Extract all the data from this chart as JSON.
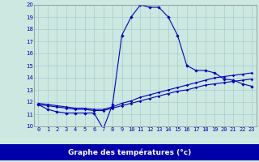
{
  "xlabel": "Graphe des températures (°c)",
  "bg_color": "#cce8e0",
  "line_color": "#0000bb",
  "label_bg_color": "#0000aa",
  "label_text_color": "#ffffff",
  "ylim": [
    10,
    20
  ],
  "xlim": [
    -0.5,
    23.5
  ],
  "yticks": [
    10,
    11,
    12,
    13,
    14,
    15,
    16,
    17,
    18,
    19,
    20
  ],
  "xticks": [
    0,
    1,
    2,
    3,
    4,
    5,
    6,
    7,
    8,
    9,
    10,
    11,
    12,
    13,
    14,
    15,
    16,
    17,
    18,
    19,
    20,
    21,
    22,
    23
  ],
  "temp_curve": [
    11.8,
    11.4,
    11.2,
    11.1,
    11.1,
    11.1,
    11.1,
    9.8,
    11.8,
    17.5,
    19.0,
    20.0,
    19.8,
    19.8,
    19.0,
    17.5,
    15.0,
    14.6,
    14.6,
    14.4,
    13.9,
    13.8,
    13.5,
    13.3
  ],
  "line2": [
    11.8,
    11.7,
    11.6,
    11.5,
    11.4,
    11.4,
    11.3,
    11.3,
    11.5,
    11.7,
    11.9,
    12.1,
    12.3,
    12.5,
    12.7,
    12.9,
    13.0,
    13.2,
    13.4,
    13.5,
    13.6,
    13.7,
    13.8,
    13.9
  ],
  "line3": [
    11.9,
    11.8,
    11.7,
    11.6,
    11.5,
    11.5,
    11.4,
    11.4,
    11.6,
    11.9,
    12.1,
    12.4,
    12.6,
    12.8,
    13.0,
    13.2,
    13.4,
    13.6,
    13.8,
    14.0,
    14.1,
    14.2,
    14.3,
    14.4
  ],
  "grid_color": "#aacccc",
  "spine_color": "#888888",
  "tick_fontsize": 5.0,
  "xlabel_fontsize": 6.5
}
